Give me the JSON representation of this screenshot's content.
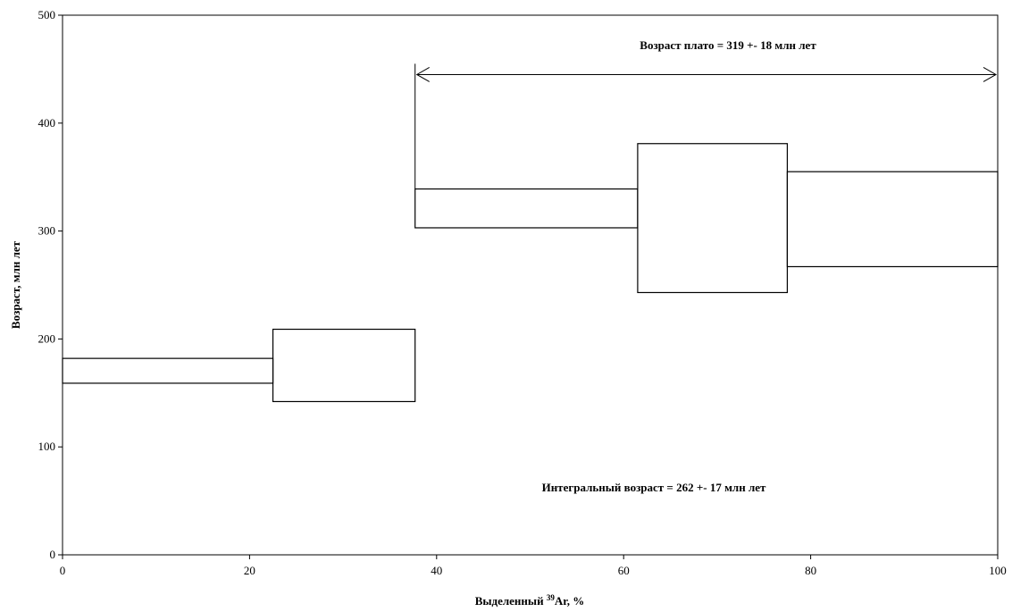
{
  "chart_data": {
    "type": "step-spectrum",
    "title": "",
    "xlabel": {
      "prefix": "Выделенный ",
      "superscript": "39",
      "suffix": "Ar, %"
    },
    "ylabel": "Возраст, млн лет",
    "xlim": [
      0,
      100
    ],
    "ylim": [
      0,
      500
    ],
    "xticks": [
      0,
      20,
      40,
      60,
      80,
      100
    ],
    "yticks": [
      0,
      100,
      200,
      300,
      400,
      500
    ],
    "steps": [
      {
        "x_start": 0.0,
        "x_end": 22.5,
        "age_low": 159,
        "age_high": 182
      },
      {
        "x_start": 22.5,
        "x_end": 37.7,
        "age_low": 142,
        "age_high": 209
      },
      {
        "x_start": 37.7,
        "x_end": 61.5,
        "age_low": 303,
        "age_high": 339
      },
      {
        "x_start": 61.5,
        "x_end": 77.5,
        "age_low": 243,
        "age_high": 381
      },
      {
        "x_start": 77.5,
        "x_end": 100.0,
        "age_low": 267,
        "age_high": 355
      }
    ],
    "plateau": {
      "x_start": 37.7,
      "x_end": 100,
      "label": "Возраст плато = 319 +- 18 млн лет"
    },
    "integral_age_label": "Интегральный возраст = 262 +- 17 млн лет",
    "grid": false,
    "legend": "none"
  }
}
